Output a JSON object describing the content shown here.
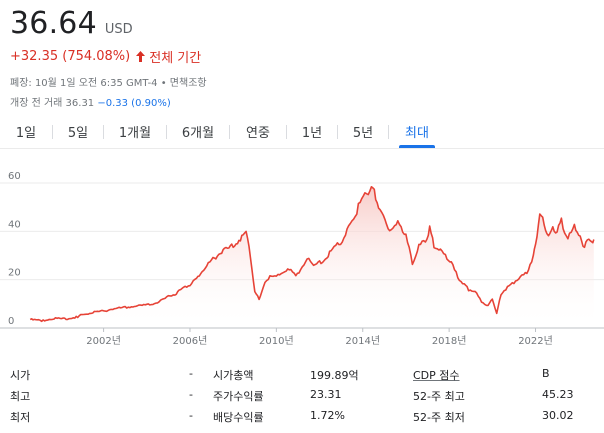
{
  "quote": {
    "price": "36.64",
    "currency": "USD",
    "change": "+32.35 (754.08%)",
    "period": "전체 기간",
    "closed_line": "폐장: 10월 1일 오전 6:35 GMT-4 • 면책조항",
    "after_hours_prefix": "개장 전 거래 36.31 ",
    "after_hours_change": "−0.33 (0.90%)"
  },
  "tabs": [
    {
      "label": "1일"
    },
    {
      "label": "5일"
    },
    {
      "label": "1개월"
    },
    {
      "label": "6개월"
    },
    {
      "label": "연중"
    },
    {
      "label": "1년"
    },
    {
      "label": "5년"
    },
    {
      "label": "최대"
    }
  ],
  "active_tab": "최대",
  "colors": {
    "line": "#e64337",
    "fill_top": "#f7c6c2",
    "up": "#d93025",
    "accent": "#1a73e8"
  },
  "chart_data": {
    "type": "area",
    "x": [
      1998.6,
      1999.2,
      1999.7,
      2000.2,
      2000.8,
      2001.0,
      2001.5,
      2002.0,
      2002.5,
      2003.0,
      2003.5,
      2004.0,
      2004.5,
      2005.0,
      2005.3,
      2005.7,
      2006.0,
      2006.3,
      2006.7,
      2007.0,
      2007.4,
      2007.8,
      2008.2,
      2008.6,
      2008.8,
      2009.0,
      2009.2,
      2009.4,
      2009.7,
      2010.0,
      2010.3,
      2010.6,
      2010.9,
      2011.2,
      2011.5,
      2011.8,
      2012.2,
      2012.6,
      2012.9,
      2013.2,
      2013.5,
      2013.8,
      2014.1,
      2014.4,
      2014.6,
      2014.8,
      2015.1,
      2015.4,
      2015.7,
      2016.0,
      2016.3,
      2016.6,
      2016.9,
      2017.1,
      2017.3,
      2017.6,
      2017.9,
      2018.1,
      2018.4,
      2018.7,
      2018.9,
      2019.2,
      2019.5,
      2019.8,
      2020.0,
      2020.2,
      2020.4,
      2020.7,
      2021.0,
      2021.3,
      2021.6,
      2021.9,
      2022.0,
      2022.2,
      2022.4,
      2022.6,
      2022.8,
      2023.0,
      2023.2,
      2023.5,
      2023.8,
      2024.0,
      2024.2,
      2024.4,
      2024.6,
      2024.7
    ],
    "y": [
      3.5,
      3,
      4,
      3.8,
      4.5,
      5.5,
      6.5,
      7,
      8,
      8.5,
      9,
      9.5,
      10.5,
      13,
      14,
      16.5,
      18,
      20,
      25,
      28,
      31,
      33,
      36,
      39,
      30,
      15,
      12,
      17,
      22,
      21,
      23,
      24,
      22,
      25,
      29,
      26,
      28,
      32,
      35,
      38,
      45,
      50,
      56,
      58,
      55,
      49,
      43,
      40,
      44,
      38,
      27,
      34,
      36,
      41,
      34,
      32,
      29,
      27,
      21,
      18,
      16,
      15,
      11,
      9,
      12,
      6,
      14,
      17,
      19,
      21,
      23,
      30,
      35,
      47,
      43,
      37,
      42,
      40,
      44,
      37,
      42,
      39,
      33,
      37,
      35,
      36.6
    ],
    "xlim": [
      1998.5,
      2024.8
    ],
    "ylim": [
      0,
      60
    ],
    "yticks": [
      "0",
      "20",
      "40",
      "60"
    ],
    "xticks": [
      "2002년",
      "2006년",
      "2010년",
      "2014년",
      "2018년",
      "2022년"
    ],
    "xtick_values": [
      2002,
      2006,
      2010,
      2014,
      2018,
      2022
    ],
    "grid": true
  },
  "stats": {
    "rows": [
      {
        "l1": "시가",
        "v1": "-",
        "l2": "시가총액",
        "v2": "199.89억",
        "l3": "CDP 점수",
        "v3": "B"
      },
      {
        "l1": "최고",
        "v1": "-",
        "l2": "주가수익률",
        "v2": "23.31",
        "l3": "52-주 최고",
        "v3": "45.23"
      },
      {
        "l1": "최저",
        "v1": "-",
        "l2": "배당수익률",
        "v2": "1.72%",
        "l3": "52-주 최저",
        "v3": "30.02"
      }
    ]
  }
}
